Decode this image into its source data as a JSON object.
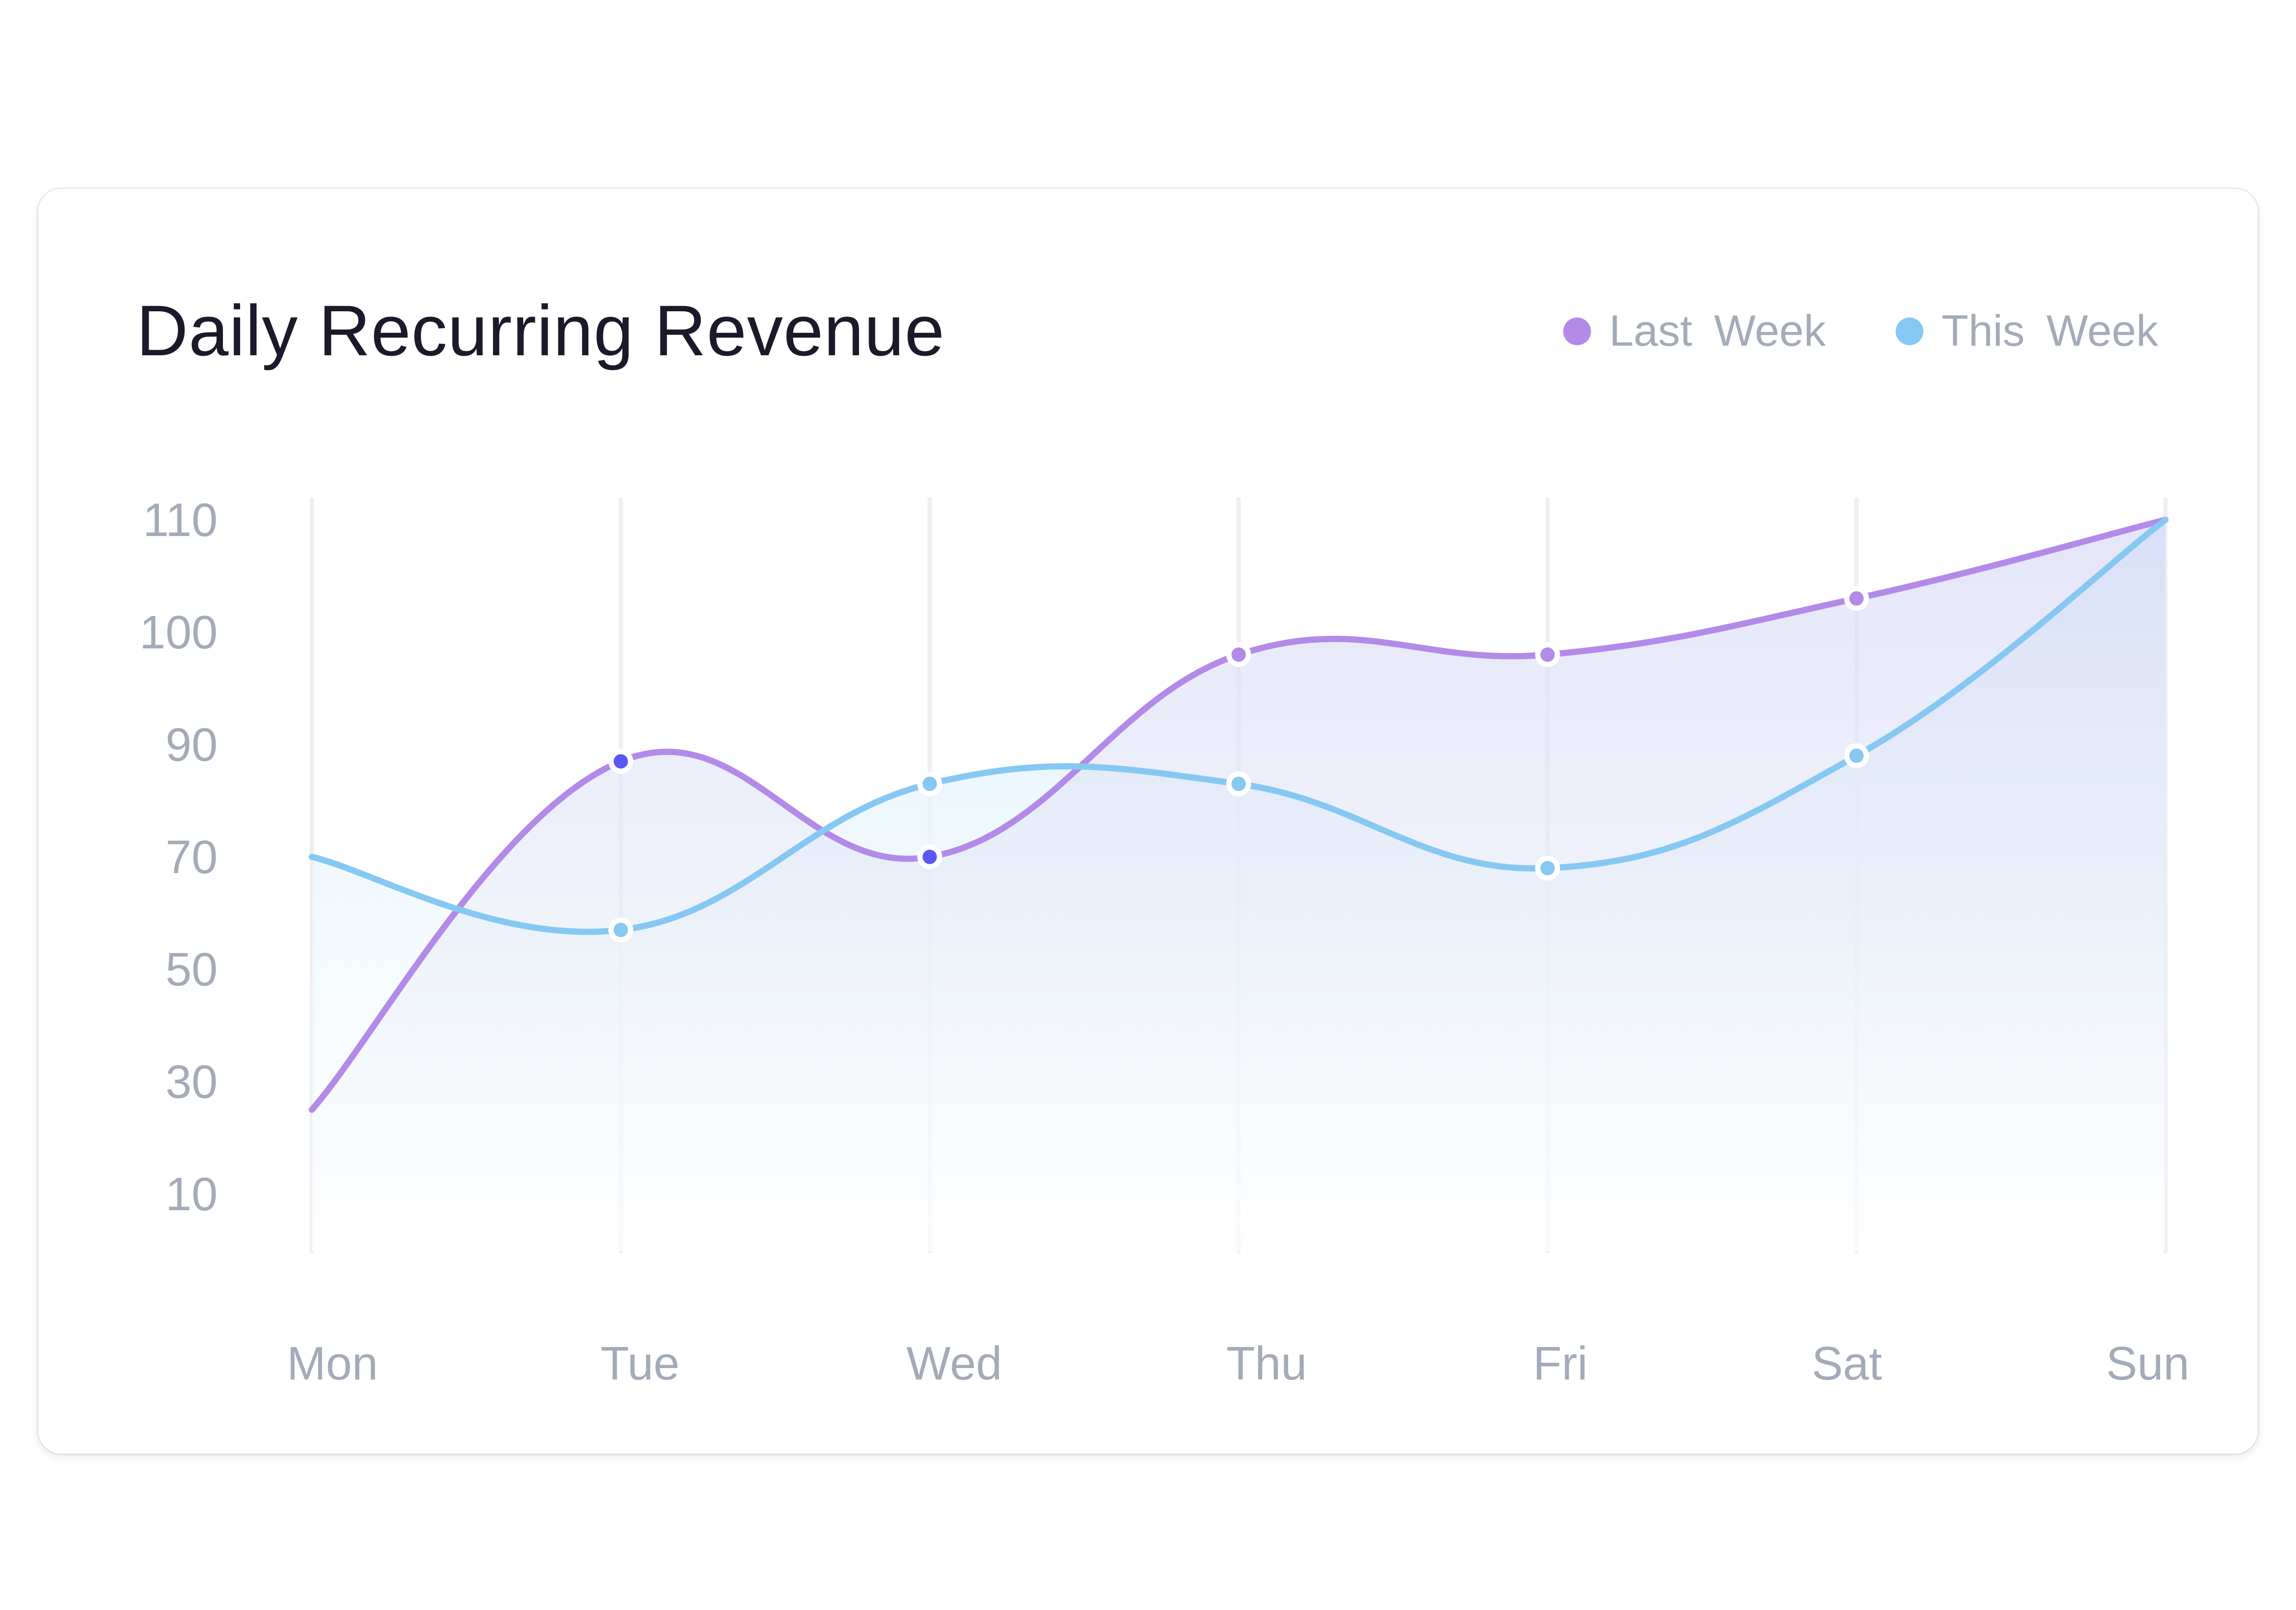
{
  "card": {
    "title": "Daily Recurring Revenue"
  },
  "legend": [
    {
      "label": "Last  Week",
      "color": "#b38ae8"
    },
    {
      "label": "This  Week",
      "color": "#86c8f2"
    }
  ],
  "colors": {
    "last_week": "#b38ae8",
    "this_week": "#86c8f2",
    "highlight_point": "#5b57f5",
    "grid": "#eceff4",
    "text_muted": "#a4abb8",
    "title": "#1a1a2a"
  },
  "chart_data": {
    "type": "line",
    "title": "Daily Recurring Revenue",
    "xlabel": "",
    "ylabel": "",
    "categories": [
      "Mon",
      "Tue",
      "Wed",
      "Thu",
      "Fri",
      "Sat",
      "Sun"
    ],
    "y_ticks": [
      "110",
      "100",
      "90",
      "70",
      "50",
      "30",
      "10"
    ],
    "y_tick_values": [
      110,
      100,
      90,
      70,
      50,
      30,
      10
    ],
    "ylim": [
      10,
      110
    ],
    "grid": "vertical",
    "legend_position": "top-right",
    "series": [
      {
        "name": "Last Week",
        "values": [
          25,
          87,
          70,
          98,
          98,
          103,
          110
        ],
        "highlighted": [
          1,
          2
        ]
      },
      {
        "name": "This Week",
        "values": [
          70,
          57,
          83,
          83,
          68,
          88,
          110
        ]
      }
    ]
  }
}
